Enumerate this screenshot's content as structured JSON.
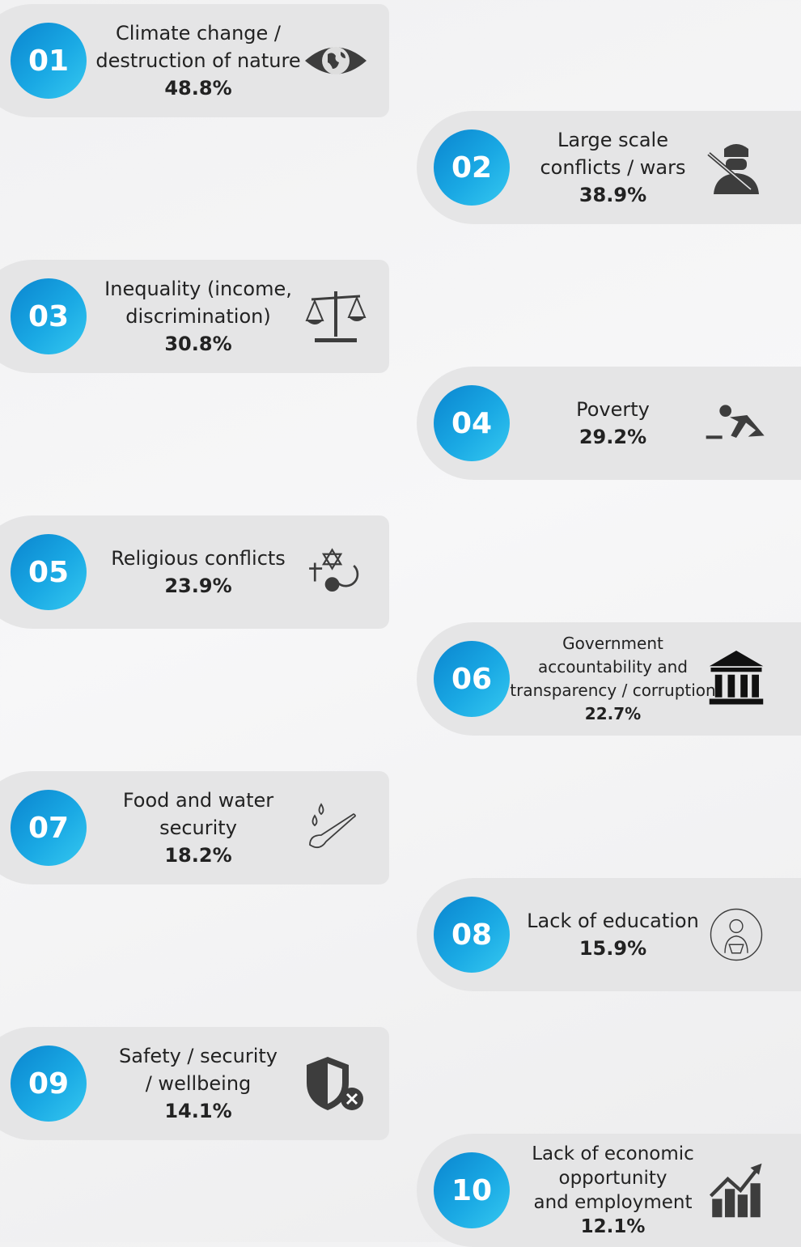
{
  "items": [
    {
      "number": "01",
      "label": [
        "Climate change /",
        "destruction of nature"
      ],
      "percent": "48.8%"
    },
    {
      "number": "02",
      "label": [
        "Large scale",
        "conflicts / wars"
      ],
      "percent": "38.9%"
    },
    {
      "number": "03",
      "label": [
        "Inequality (income,",
        "discrimination)"
      ],
      "percent": "30.8%"
    },
    {
      "number": "04",
      "label": [
        "Poverty"
      ],
      "percent": "29.2%"
    },
    {
      "number": "05",
      "label": [
        "Religious conflicts"
      ],
      "percent": "23.9%"
    },
    {
      "number": "06",
      "label": [
        "Government",
        "accountability and",
        "transparency / corruption"
      ],
      "percent": "22.7%"
    },
    {
      "number": "07",
      "label": [
        "Food and water",
        "security"
      ],
      "percent": "18.2%"
    },
    {
      "number": "08",
      "label": [
        "Lack of education"
      ],
      "percent": "15.9%"
    },
    {
      "number": "09",
      "label": [
        "Safety / security",
        "/ wellbeing"
      ],
      "percent": "14.1%"
    },
    {
      "number": "10",
      "label": [
        "Lack of economic",
        "opportunity",
        "and employment"
      ],
      "percent": "12.1%"
    }
  ]
}
